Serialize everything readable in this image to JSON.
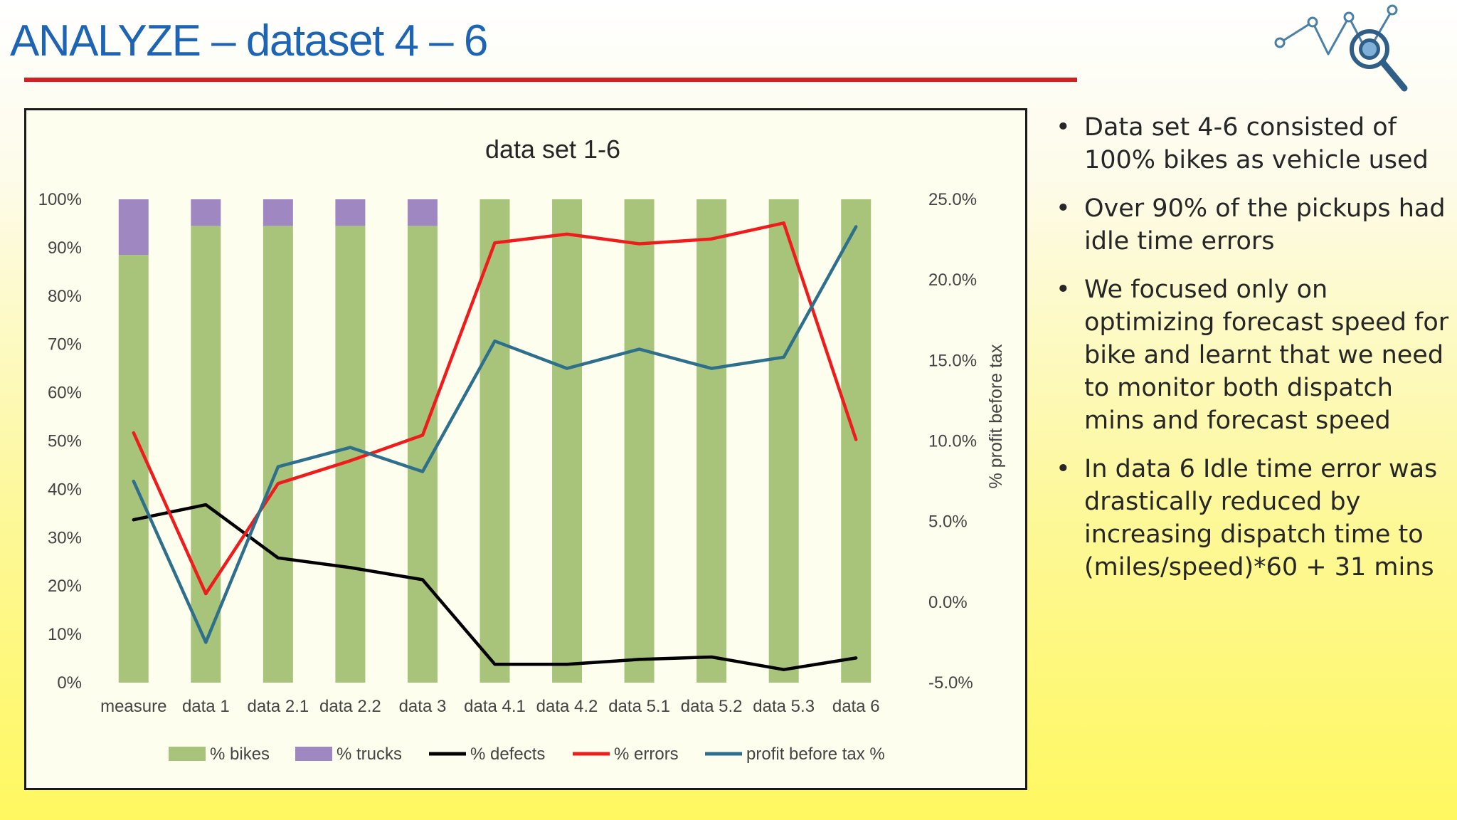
{
  "slide": {
    "title": "ANALYZE – dataset 4 – 6"
  },
  "bullets": [
    "Data set 4-6 consisted of 100% bikes as vehicle used",
    "Over 90% of the pickups had idle time errors",
    "We focused only on optimizing forecast speed for bike and learnt that we need to monitor both dispatch mins and forecast speed",
    "In data 6 Idle time error was drastically reduced by increasing dispatch time to (miles/speed)*60 + 31 mins"
  ],
  "chart_data": {
    "type": "bar",
    "title": "data set 1-6",
    "categories": [
      "measure",
      "data 1",
      "data 2.1",
      "data 2.2",
      "data 3",
      "data 4.1",
      "data 4.2",
      "data 5.1",
      "data 5.2",
      "data 5.3",
      "data 6"
    ],
    "ylim": [
      0,
      1
    ],
    "yticks": [
      0,
      0.1,
      0.2,
      0.3,
      0.4,
      0.5,
      0.6,
      0.7,
      0.8,
      0.9,
      1.0
    ],
    "ytick_labels": [
      "0%",
      "10%",
      "20%",
      "30%",
      "40%",
      "50%",
      "60%",
      "70%",
      "80%",
      "90%",
      "100%"
    ],
    "y2label": "% profit  before tax",
    "y2lim": [
      -0.05,
      0.25
    ],
    "y2ticks": [
      -0.05,
      0,
      0.05,
      0.1,
      0.15,
      0.2,
      0.25
    ],
    "y2tick_labels": [
      "-5.0%",
      "0.0%",
      "5.0%",
      "10.0%",
      "15.0%",
      "20.0%",
      "25.0%"
    ],
    "grid": false,
    "legend_position": "bottom",
    "series": [
      {
        "name": "% bikes",
        "kind": "stacked-bar",
        "axis": "left",
        "color": "#a8c47a",
        "values": [
          0.885,
          0.945,
          0.945,
          0.945,
          0.945,
          1.0,
          1.0,
          1.0,
          1.0,
          1.0,
          1.0
        ]
      },
      {
        "name": "% trucks",
        "kind": "stacked-bar",
        "axis": "left",
        "color": "#9f88c2",
        "values": [
          0.115,
          0.055,
          0.055,
          0.055,
          0.055,
          0,
          0,
          0,
          0,
          0,
          0
        ]
      },
      {
        "name": "% defects",
        "kind": "line",
        "axis": "left",
        "color": "#000000",
        "values": [
          0.337,
          0.368,
          0.258,
          0.238,
          0.213,
          0.038,
          0.038,
          0.048,
          0.053,
          0.027,
          0.051
        ]
      },
      {
        "name": "% errors",
        "kind": "line",
        "axis": "left",
        "color": "#ee1c1c",
        "values": [
          0.517,
          0.184,
          0.412,
          0.459,
          0.512,
          0.91,
          0.928,
          0.908,
          0.918,
          0.951,
          0.503
        ]
      },
      {
        "name": "profit before tax %",
        "kind": "line",
        "axis": "right",
        "color": "#2e6f8c",
        "values": [
          0.075,
          -0.025,
          0.084,
          0.096,
          0.081,
          0.162,
          0.145,
          0.157,
          0.145,
          0.152,
          0.233
        ]
      }
    ]
  }
}
